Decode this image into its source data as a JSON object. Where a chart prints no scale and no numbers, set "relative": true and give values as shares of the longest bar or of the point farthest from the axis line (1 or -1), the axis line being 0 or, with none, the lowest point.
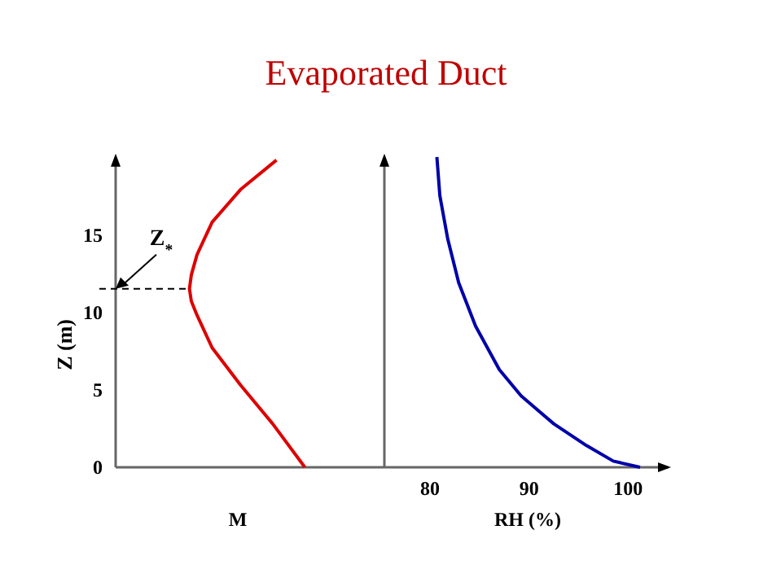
{
  "chart_data": [
    {
      "type": "line",
      "title": "Evaporated Duct",
      "ylabel": "Z (m)",
      "xlabel": "M",
      "relative": true,
      "orientation": "horizontal",
      "ylim": [
        0,
        20
      ],
      "yticks": [
        0,
        5,
        10,
        15
      ],
      "grid": false,
      "marker": "none",
      "line_style": "solid",
      "series": [
        {
          "color": "#dd0000",
          "x": [
            0,
            2.8,
            5.3,
            7.7,
            9.8,
            10.7,
            11.5,
            12.4,
            13.7,
            15.8,
            17.9,
            19.8
          ],
          "values": [
            1,
            0.83,
            0.66,
            0.51,
            0.43,
            0.4,
            0.39,
            0.4,
            0.43,
            0.51,
            0.66,
            0.85
          ]
        }
      ],
      "ref_lines": [
        {
          "axis": "y",
          "value": 11.5,
          "label": "Z$_{*}$",
          "line_style": "dashed",
          "color": "#000000"
        }
      ]
    },
    {
      "type": "line",
      "xlabel": "RH (%)",
      "xlim": [
        75.4,
        104
      ],
      "xticks": [
        80,
        90,
        100
      ],
      "ylim": [
        0,
        20
      ],
      "tick_labels": "x",
      "grid": false,
      "marker": "none",
      "line_style": "solid",
      "series": [
        {
          "color": "#0000aa",
          "x": [
            80.7,
            81.0,
            81.8,
            82.9,
            84.6,
            87.0,
            89.2,
            92.5,
            95.8,
            98.5,
            101.2
          ],
          "values": [
            20,
            17.5,
            14.7,
            11.9,
            9.1,
            6.3,
            4.6,
            2.8,
            1.4,
            0.4,
            0
          ]
        }
      ]
    }
  ]
}
